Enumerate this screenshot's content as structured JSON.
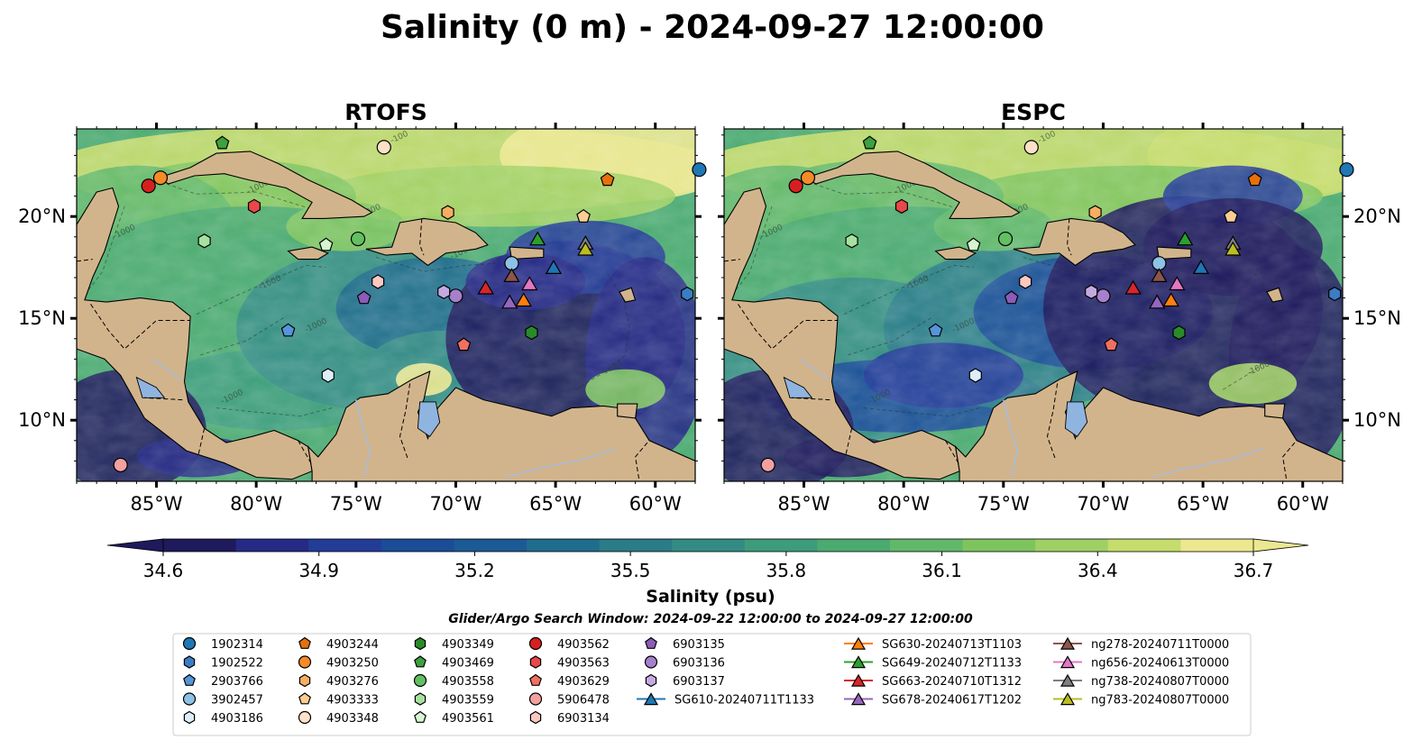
{
  "title": "Salinity (0 m) - 2024-09-27 12:00:00",
  "panels": [
    {
      "title": "RTOFS"
    },
    {
      "title": "ESPC"
    }
  ],
  "colors": {
    "land": "#d2b48c",
    "lakes": "#90b4e0",
    "rivers": "#a8bcd8",
    "coast": "#000000",
    "colormap": [
      "#1e1a5c",
      "#262a86",
      "#233c98",
      "#1a4c98",
      "#1b5a94",
      "#1f6c8c",
      "#2a7c88",
      "#338c84",
      "#3c9c7c",
      "#4aaa70",
      "#62b86a",
      "#7ec45e",
      "#a0d064",
      "#c6dc6c",
      "#ece890"
    ]
  },
  "colorbar": {
    "label": "Salinity (psu)",
    "ticks": [
      "34.6",
      "34.9",
      "35.2",
      "35.5",
      "35.8",
      "36.1",
      "36.4",
      "36.7"
    ],
    "extend": "both"
  },
  "search_window": "Glider/Argo Search Window: 2024-09-22 12:00:00 to 2024-09-27 12:00:00",
  "chart_data": {
    "type": "map",
    "variable": "Salinity",
    "units": "psu",
    "depth": "0 m",
    "time": "2024-09-27 12:00:00",
    "models": [
      "RTOFS",
      "ESPC"
    ],
    "xlim": [
      -89,
      -58
    ],
    "ylim": [
      7,
      24.3
    ],
    "xticks": [
      -85,
      -80,
      -75,
      -70,
      -65,
      -60
    ],
    "xtick_labels": [
      "85°W",
      "80°W",
      "75°W",
      "70°W",
      "65°W",
      "60°W"
    ],
    "yticks": [
      10,
      15,
      20
    ],
    "ytick_labels": [
      "10°N",
      "15°N",
      "20°N"
    ],
    "clim": [
      34.6,
      36.7
    ],
    "contour_labels": [
      "-1000",
      "-100"
    ],
    "markers": [
      {
        "id": "1902314",
        "kind": "argo",
        "marker": "circle",
        "color": "#1f77b4",
        "lon": -57.8,
        "lat": 22.3
      },
      {
        "id": "1902522",
        "kind": "argo",
        "marker": "hexagon",
        "color": "#3b7dc4",
        "lon": -58.4,
        "lat": 16.2
      },
      {
        "id": "2903766",
        "kind": "argo",
        "marker": "pentagon",
        "color": "#5595d8",
        "lon": -78.4,
        "lat": 14.4
      },
      {
        "id": "3902457",
        "kind": "argo",
        "marker": "circle",
        "color": "#8ec1e6",
        "lon": -67.2,
        "lat": 17.7
      },
      {
        "id": "4903186",
        "kind": "argo",
        "marker": "hexagon",
        "color": "#dceefa",
        "lon": -76.4,
        "lat": 12.2
      },
      {
        "id": "4903244",
        "kind": "argo",
        "marker": "pentagon",
        "color": "#e8700a",
        "lon": -62.4,
        "lat": 21.8
      },
      {
        "id": "4903250",
        "kind": "argo",
        "marker": "circle",
        "color": "#f58a28",
        "lon": -84.8,
        "lat": 21.9
      },
      {
        "id": "4903276",
        "kind": "argo",
        "marker": "hexagon",
        "color": "#f8ad62",
        "lon": -70.4,
        "lat": 20.2
      },
      {
        "id": "4903333",
        "kind": "argo",
        "marker": "pentagon",
        "color": "#fbcd92",
        "lon": -63.6,
        "lat": 20.0
      },
      {
        "id": "4903348",
        "kind": "argo",
        "marker": "circle",
        "color": "#fee1c8",
        "lon": -73.6,
        "lat": 23.4
      },
      {
        "id": "4903349",
        "kind": "argo",
        "marker": "hexagon",
        "color": "#2a8a2a",
        "lon": -66.2,
        "lat": 14.3
      },
      {
        "id": "4903469",
        "kind": "argo",
        "marker": "pentagon",
        "color": "#3ea03e",
        "lon": -81.7,
        "lat": 23.6
      },
      {
        "id": "4903558",
        "kind": "argo",
        "marker": "circle",
        "color": "#62c062",
        "lon": -74.9,
        "lat": 18.9
      },
      {
        "id": "4903559",
        "kind": "argo",
        "marker": "hexagon",
        "color": "#a8e0a0",
        "lon": -82.6,
        "lat": 18.8
      },
      {
        "id": "4903561",
        "kind": "argo",
        "marker": "pentagon",
        "color": "#d6f5d0",
        "lon": -76.5,
        "lat": 18.6
      },
      {
        "id": "4903562",
        "kind": "argo",
        "marker": "circle",
        "color": "#d62020",
        "lon": -85.4,
        "lat": 21.5
      },
      {
        "id": "4903563",
        "kind": "argo",
        "marker": "hexagon",
        "color": "#e84848",
        "lon": -80.1,
        "lat": 20.5
      },
      {
        "id": "4903629",
        "kind": "argo",
        "marker": "pentagon",
        "color": "#f07060",
        "lon": -69.6,
        "lat": 13.7
      },
      {
        "id": "5906478",
        "kind": "argo",
        "marker": "circle",
        "color": "#f4a0a0",
        "lon": -86.8,
        "lat": 7.8
      },
      {
        "id": "6903134",
        "kind": "argo",
        "marker": "hexagon",
        "color": "#fcc8c0",
        "lon": -73.9,
        "lat": 16.8
      },
      {
        "id": "6903135",
        "kind": "argo",
        "marker": "pentagon",
        "color": "#8c5cb8",
        "lon": -74.6,
        "lat": 16.0
      },
      {
        "id": "6903136",
        "kind": "argo",
        "marker": "circle",
        "color": "#a680cc",
        "lon": -70.0,
        "lat": 16.1
      },
      {
        "id": "6903137",
        "kind": "argo",
        "marker": "hexagon",
        "color": "#c4aae0",
        "lon": -70.6,
        "lat": 16.3
      },
      {
        "id": "SG610-20240711T1133",
        "kind": "glider",
        "marker": "triangle",
        "color": "#1f77b4",
        "lon": -65.1,
        "lat": 17.5
      },
      {
        "id": "SG630-20240713T1103",
        "kind": "glider",
        "marker": "triangle",
        "color": "#ff7f0e",
        "lon": -66.6,
        "lat": 15.9
      },
      {
        "id": "SG649-20240712T1133",
        "kind": "glider",
        "marker": "triangle",
        "color": "#2ca02c",
        "lon": -65.9,
        "lat": 18.9
      },
      {
        "id": "SG663-20240710T1312",
        "kind": "glider",
        "marker": "triangle",
        "color": "#d62728",
        "lon": -68.5,
        "lat": 16.5
      },
      {
        "id": "SG678-20240617T1202",
        "kind": "glider",
        "marker": "triangle",
        "color": "#9467bd",
        "lon": -67.3,
        "lat": 15.8
      },
      {
        "id": "ng278-20240711T0000",
        "kind": "glider",
        "marker": "triangle",
        "color": "#8c564b",
        "lon": -67.2,
        "lat": 17.1
      },
      {
        "id": "ng656-20240613T0000",
        "kind": "glider",
        "marker": "triangle",
        "color": "#e377c2",
        "lon": -66.3,
        "lat": 16.7
      },
      {
        "id": "ng738-20240807T0000",
        "kind": "glider",
        "marker": "triangle",
        "color": "#7f7f7f",
        "lon": -63.5,
        "lat": 18.7
      },
      {
        "id": "ng783-20240807T0000",
        "kind": "glider",
        "marker": "triangle",
        "color": "#bcbd22",
        "lon": -63.5,
        "lat": 18.4
      }
    ]
  },
  "legend_columns": [
    [
      "1902314",
      "1902522",
      "2903766",
      "3902457",
      "4903186"
    ],
    [
      "4903244",
      "4903250",
      "4903276",
      "4903333",
      "4903348"
    ],
    [
      "4903349",
      "4903469",
      "4903558",
      "4903559",
      "4903561"
    ],
    [
      "4903562",
      "4903563",
      "4903629",
      "5906478",
      "6903134"
    ],
    [
      "6903135",
      "6903136",
      "6903137",
      "SG610-20240711T1133"
    ],
    [
      "SG630-20240713T1103",
      "SG649-20240712T1133",
      "SG663-20240710T1312",
      "SG678-20240617T1202"
    ],
    [
      "ng278-20240711T0000",
      "ng656-20240613T0000",
      "ng738-20240807T0000",
      "ng783-20240807T0000"
    ]
  ]
}
